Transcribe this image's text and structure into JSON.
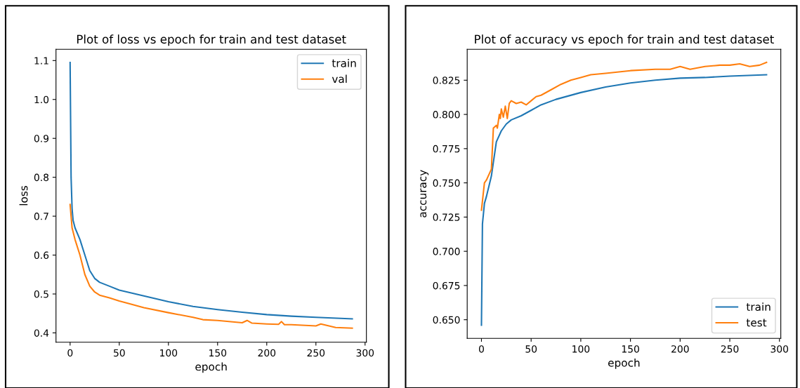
{
  "chart_data": [
    {
      "type": "line",
      "title": "Plot of loss vs epoch for train and test dataset",
      "xlabel": "epoch",
      "ylabel": "loss",
      "xlim": [
        -14.35,
        301.35
      ],
      "ylim": [
        0.376,
        1.129
      ],
      "xticks": [
        0,
        50,
        100,
        150,
        200,
        250,
        300
      ],
      "yticks": [
        0.4,
        0.5,
        0.6,
        0.7,
        0.8,
        0.9,
        {
          "value": 1.0,
          "label": "1.0"
        },
        1.1
      ],
      "legend": "top right",
      "grid": false,
      "series": [
        {
          "name": "train",
          "color": "#1f77b4",
          "x": [
            0,
            1,
            2,
            3,
            5,
            10,
            15,
            20,
            25,
            30,
            40,
            50,
            75,
            100,
            125,
            150,
            175,
            200,
            225,
            250,
            287
          ],
          "values": [
            1.095,
            0.8,
            0.72,
            0.69,
            0.67,
            0.64,
            0.6,
            0.56,
            0.54,
            0.53,
            0.52,
            0.51,
            0.495,
            0.48,
            0.468,
            0.46,
            0.453,
            0.447,
            0.443,
            0.44,
            0.436
          ]
        },
        {
          "name": "val",
          "color": "#ff7f0e",
          "x": [
            0,
            2,
            5,
            10,
            15,
            20,
            25,
            30,
            40,
            50,
            60,
            75,
            100,
            125,
            135,
            150,
            175,
            180,
            185,
            200,
            212,
            215,
            218,
            225,
            250,
            255,
            270,
            287
          ],
          "values": [
            0.73,
            0.67,
            0.64,
            0.6,
            0.55,
            0.52,
            0.505,
            0.497,
            0.49,
            0.482,
            0.475,
            0.465,
            0.452,
            0.44,
            0.434,
            0.432,
            0.426,
            0.432,
            0.425,
            0.423,
            0.422,
            0.429,
            0.421,
            0.421,
            0.418,
            0.423,
            0.414,
            0.412
          ]
        }
      ]
    },
    {
      "type": "line",
      "title": "Plot of accuracy vs epoch for train and test dataset",
      "xlabel": "epoch",
      "ylabel": "accuracy",
      "xlim": [
        -14.35,
        301.35
      ],
      "ylim": [
        0.6364,
        0.8476
      ],
      "xticks": [
        0,
        50,
        100,
        150,
        200,
        250,
        300
      ],
      "yticks": [
        {
          "value": 0.65,
          "label": "0.650"
        },
        {
          "value": 0.675,
          "label": "0.675"
        },
        {
          "value": 0.7,
          "label": "0.700"
        },
        {
          "value": 0.725,
          "label": "0.725"
        },
        {
          "value": 0.75,
          "label": "0.750"
        },
        {
          "value": 0.775,
          "label": "0.775"
        },
        {
          "value": 0.8,
          "label": "0.800"
        },
        {
          "value": 0.825,
          "label": "0.825"
        }
      ],
      "legend": "bottom right",
      "grid": false,
      "series": [
        {
          "name": "train",
          "color": "#1f77b4",
          "x": [
            0,
            1,
            3,
            5,
            10,
            12,
            15,
            20,
            25,
            30,
            40,
            50,
            60,
            75,
            100,
            125,
            150,
            175,
            200,
            225,
            250,
            287
          ],
          "values": [
            0.646,
            0.72,
            0.735,
            0.74,
            0.755,
            0.765,
            0.78,
            0.788,
            0.793,
            0.796,
            0.799,
            0.803,
            0.807,
            0.811,
            0.816,
            0.82,
            0.823,
            0.825,
            0.8265,
            0.827,
            0.828,
            0.829
          ]
        },
        {
          "name": "test",
          "color": "#ff7f0e",
          "x": [
            0,
            3,
            5,
            10,
            12,
            15,
            16,
            18,
            19,
            20,
            22,
            24,
            26,
            28,
            30,
            35,
            40,
            45,
            50,
            55,
            60,
            70,
            80,
            90,
            100,
            110,
            125,
            150,
            175,
            190,
            200,
            210,
            225,
            240,
            250,
            260,
            270,
            280,
            287
          ],
          "values": [
            0.73,
            0.75,
            0.752,
            0.76,
            0.79,
            0.792,
            0.79,
            0.8,
            0.797,
            0.804,
            0.798,
            0.806,
            0.797,
            0.808,
            0.81,
            0.808,
            0.809,
            0.807,
            0.81,
            0.813,
            0.814,
            0.818,
            0.822,
            0.825,
            0.827,
            0.829,
            0.83,
            0.832,
            0.833,
            0.833,
            0.835,
            0.833,
            0.835,
            0.836,
            0.836,
            0.837,
            0.835,
            0.836,
            0.838
          ]
        }
      ]
    }
  ]
}
